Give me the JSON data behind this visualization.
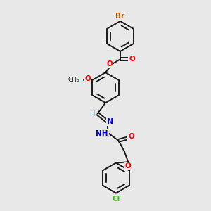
{
  "bg_color": "#e8e8e8",
  "bond_color": "#1a1a1a",
  "atom_colors": {
    "O": "#ff0000",
    "N": "#0000cc",
    "Br": "#b35900",
    "Cl": "#33cc00",
    "C": "#1a1a1a",
    "H": "#4a8a8a"
  },
  "figure_size": [
    3.0,
    3.0
  ],
  "dpi": 100
}
